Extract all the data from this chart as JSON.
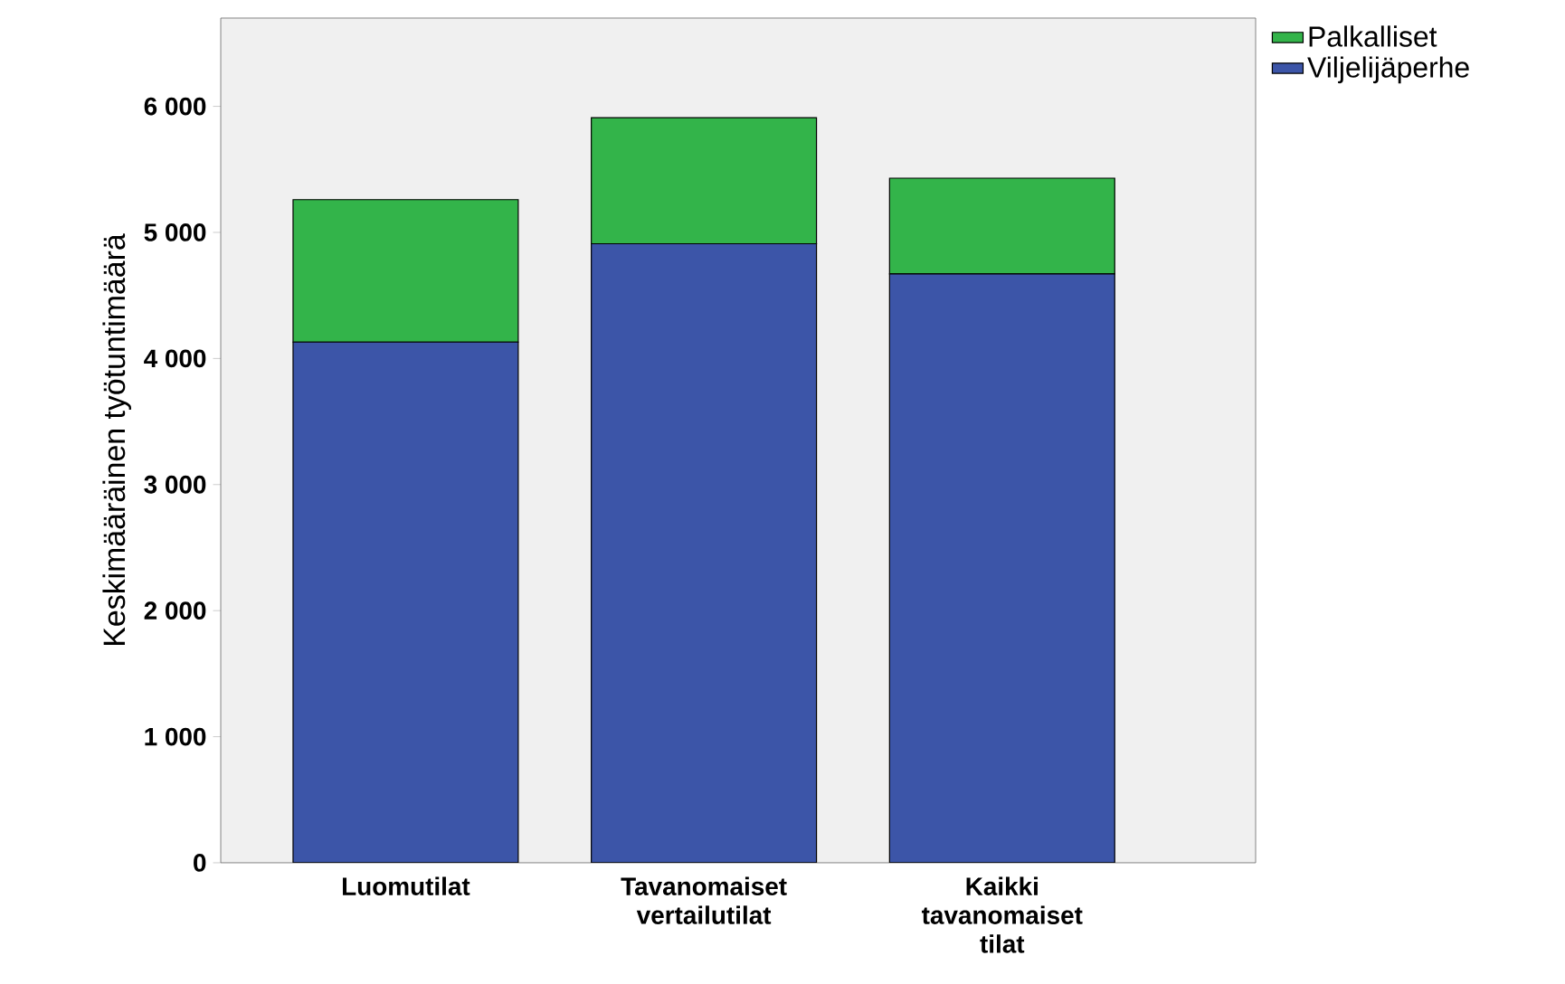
{
  "chart_data": {
    "type": "bar",
    "stacked": true,
    "ylabel": "Keskimääräinen työtuntimäärä",
    "categories": [
      "Luomutilat",
      "Tavanomaiset vertailutilat",
      "Kaikki tavanomaiset tilat"
    ],
    "series": [
      {
        "name": "Viljelijäperhe",
        "color": "#3c55a8",
        "values": [
          4130,
          4910,
          4670
        ]
      },
      {
        "name": "Palkalliset",
        "color": "#33b44a",
        "values": [
          1130,
          1000,
          760
        ]
      }
    ],
    "ylim": [
      0,
      6700
    ],
    "yticks": [
      0,
      {
        "value": 1000,
        "label": "1 000"
      },
      {
        "value": 2000,
        "label": "2 000"
      },
      {
        "value": 3000,
        "label": "3 000"
      },
      {
        "value": 4000,
        "label": "4 000"
      },
      {
        "value": 5000,
        "label": "5 000"
      },
      {
        "value": 6000,
        "label": "6 000"
      }
    ],
    "grid": false,
    "legend": "top right"
  }
}
